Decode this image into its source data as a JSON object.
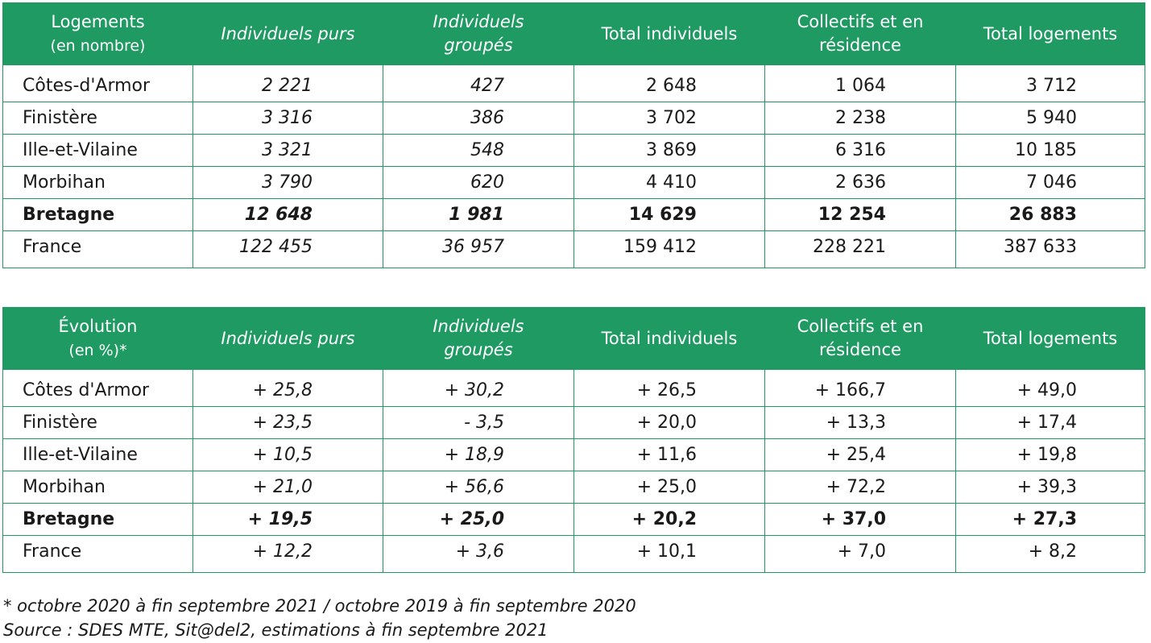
{
  "table1": {
    "headers": {
      "label_line1": "Logements",
      "label_line2": "(en nombre)",
      "col1": "Individuels purs",
      "col2_line1": "Individuels",
      "col2_line2": "groupés",
      "col3": "Total individuels",
      "col4_line1": "Collectifs et en",
      "col4_line2": "résidence",
      "col5": "Total logements"
    },
    "rows": [
      {
        "label": "Côtes-d'Armor",
        "v1": "2 221",
        "v2": "427",
        "v3": "2 648",
        "v4": "1 064",
        "v5": "3 712"
      },
      {
        "label": "Finistère",
        "v1": "3 316",
        "v2": "386",
        "v3": "3 702",
        "v4": "2 238",
        "v5": "5 940"
      },
      {
        "label": "Ille-et-Vilaine",
        "v1": "3 321",
        "v2": "548",
        "v3": "3 869",
        "v4": "6 316",
        "v5": "10 185"
      },
      {
        "label": "Morbihan",
        "v1": "3 790",
        "v2": "620",
        "v3": "4 410",
        "v4": "2 636",
        "v5": "7 046"
      },
      {
        "label": "Bretagne",
        "v1": "12 648",
        "v2": "1 981",
        "v3": "14 629",
        "v4": "12 254",
        "v5": "26 883"
      },
      {
        "label": "France",
        "v1": "122 455",
        "v2": "36 957",
        "v3": "159 412",
        "v4": "228 221",
        "v5": "387 633"
      }
    ]
  },
  "table2": {
    "headers": {
      "label_line1": "Évolution",
      "label_line2": "(en %)*",
      "col1": "Individuels purs",
      "col2_line1": "Individuels",
      "col2_line2": "groupés",
      "col3": "Total individuels",
      "col4_line1": "Collectifs et en",
      "col4_line2": "résidence",
      "col5": "Total logements"
    },
    "rows": [
      {
        "label": "Côtes d'Armor",
        "v1": "+ 25,8",
        "v2": "+ 30,2",
        "v3": "+ 26,5",
        "v4": "+ 166,7",
        "v5": "+ 49,0"
      },
      {
        "label": "Finistère",
        "v1": "+ 23,5",
        "v2": "- 3,5",
        "v3": "+ 20,0",
        "v4": "+ 13,3",
        "v5": "+ 17,4"
      },
      {
        "label": "Ille-et-Vilaine",
        "v1": "+ 10,5",
        "v2": "+ 18,9",
        "v3": "+ 11,6",
        "v4": "+ 25,4",
        "v5": "+ 19,8"
      },
      {
        "label": "Morbihan",
        "v1": "+ 21,0",
        "v2": "+ 56,6",
        "v3": "+ 25,0",
        "v4": "+ 72,2",
        "v5": "+ 39,3"
      },
      {
        "label": "Bretagne",
        "v1": "+ 19,5",
        "v2": "+ 25,0",
        "v3": "+ 20,2",
        "v4": "+ 37,0",
        "v5": "+ 27,3"
      },
      {
        "label": "France",
        "v1": "+ 12,2",
        "v2": "+ 3,6",
        "v3": "+ 10,1",
        "v4": "+ 7,0",
        "v5": "+ 8,2"
      }
    ]
  },
  "footnotes": {
    "note": "* octobre 2020 à fin septembre 2021 / octobre 2019 à fin septembre 2020",
    "source": "Source : SDES MTE, Sit@del2, estimations à fin septembre 2021"
  },
  "colors": {
    "header_green": "#1f9a63",
    "header_text": "#ffffff",
    "body_text": "#1a1a1a"
  }
}
